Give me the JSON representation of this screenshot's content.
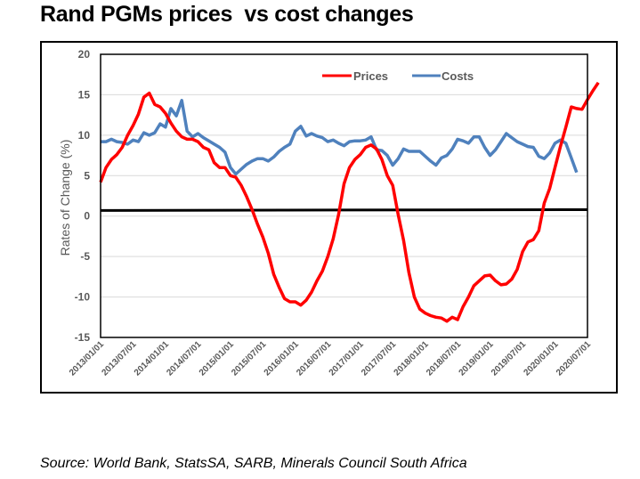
{
  "title": "Rand PGMs prices  vs cost changes",
  "source": "Source: World Bank, StatsSA, SARB, Minerals Council South Africa",
  "chart_data": {
    "type": "line",
    "title": "Rand PGMs prices  vs cost changes",
    "xlabel": "",
    "ylabel": "Rates of Change (%)",
    "ylim": [
      -15,
      20
    ],
    "yticks": [
      20,
      15,
      10,
      5,
      0,
      -5,
      -10,
      -15
    ],
    "grid": true,
    "legend_position": "top-right",
    "x_start": "2013/01",
    "x_frequency": "monthly",
    "x_tick_labels": [
      "2013/01/01",
      "2013/07/01",
      "2014/01/01",
      "2014/07/01",
      "2015/01/01",
      "2015/07/01",
      "2016/01/01",
      "2016/07/01",
      "2017/01/01",
      "2017/07/01",
      "2018/01/01",
      "2018/07/01",
      "2019/01/01",
      "2019/07/01",
      "2020/01/01",
      "2020/07/01"
    ],
    "series": [
      {
        "name": "Prices",
        "color": "#ff0000",
        "values": [
          4.2,
          6.0,
          7.0,
          7.6,
          8.5,
          10.0,
          11.2,
          12.6,
          14.7,
          15.2,
          13.8,
          13.5,
          12.7,
          11.5,
          10.5,
          9.8,
          9.5,
          9.5,
          9.2,
          8.5,
          8.2,
          6.6,
          6.0,
          6.0,
          5.0,
          4.8,
          3.8,
          2.4,
          0.8,
          -1.0,
          -2.6,
          -4.6,
          -7.2,
          -8.8,
          -10.2,
          -10.6,
          -10.6,
          -11.0,
          -10.4,
          -9.4,
          -8.0,
          -6.8,
          -5.0,
          -2.8,
          0.2,
          4.0,
          6.0,
          7.0,
          7.6,
          8.5,
          8.8,
          8.3,
          7.0,
          5.0,
          3.8,
          0.2,
          -3.0,
          -7.0,
          -10.0,
          -11.5,
          -12.0,
          -12.3,
          -12.5,
          -12.6,
          -13.0,
          -12.5,
          -12.8,
          -11.2,
          -10.0,
          -8.6,
          -8.0,
          -7.4,
          -7.3,
          -8.0,
          -8.5,
          -8.4,
          -7.8,
          -6.6,
          -4.4,
          -3.2,
          -2.9,
          -1.8,
          1.6,
          3.4,
          6.0,
          8.6,
          11.0,
          13.5,
          13.3,
          13.2,
          14.4,
          15.5,
          16.5
        ],
        "truncated_note": ""
      },
      {
        "name": "Costs",
        "color": "#4f81bd",
        "values": [
          9.2,
          9.2,
          9.5,
          9.2,
          9.1,
          8.9,
          9.4,
          9.2,
          10.3,
          10.0,
          10.3,
          11.4,
          11.0,
          13.3,
          12.4,
          14.3,
          10.5,
          9.8,
          10.2,
          9.7,
          9.3,
          8.9,
          8.5,
          7.9,
          6.0,
          5.2,
          5.8,
          6.4,
          6.8,
          7.1,
          7.1,
          6.8,
          7.3,
          8.0,
          8.5,
          8.9,
          10.5,
          11.1,
          9.9,
          10.2,
          9.9,
          9.7,
          9.2,
          9.4,
          9.0,
          8.7,
          9.2,
          9.3,
          9.3,
          9.4,
          9.8,
          8.2,
          8.1,
          7.5,
          6.3,
          7.1,
          8.3,
          8.0,
          8.0,
          8.0,
          7.4,
          6.8,
          6.3,
          7.2,
          7.5,
          8.3,
          9.5,
          9.3,
          9.0,
          9.8,
          9.8,
          8.5,
          7.5,
          8.2,
          9.2,
          10.2,
          9.7,
          9.2,
          8.9,
          8.6,
          8.5,
          7.4,
          7.1,
          7.8,
          9.0,
          9.4,
          9.0,
          7.2,
          5.4
        ]
      },
      {
        "name": "Zero reference",
        "color": "#000000",
        "values_constant": 0.7,
        "show_in_legend": false
      }
    ]
  }
}
